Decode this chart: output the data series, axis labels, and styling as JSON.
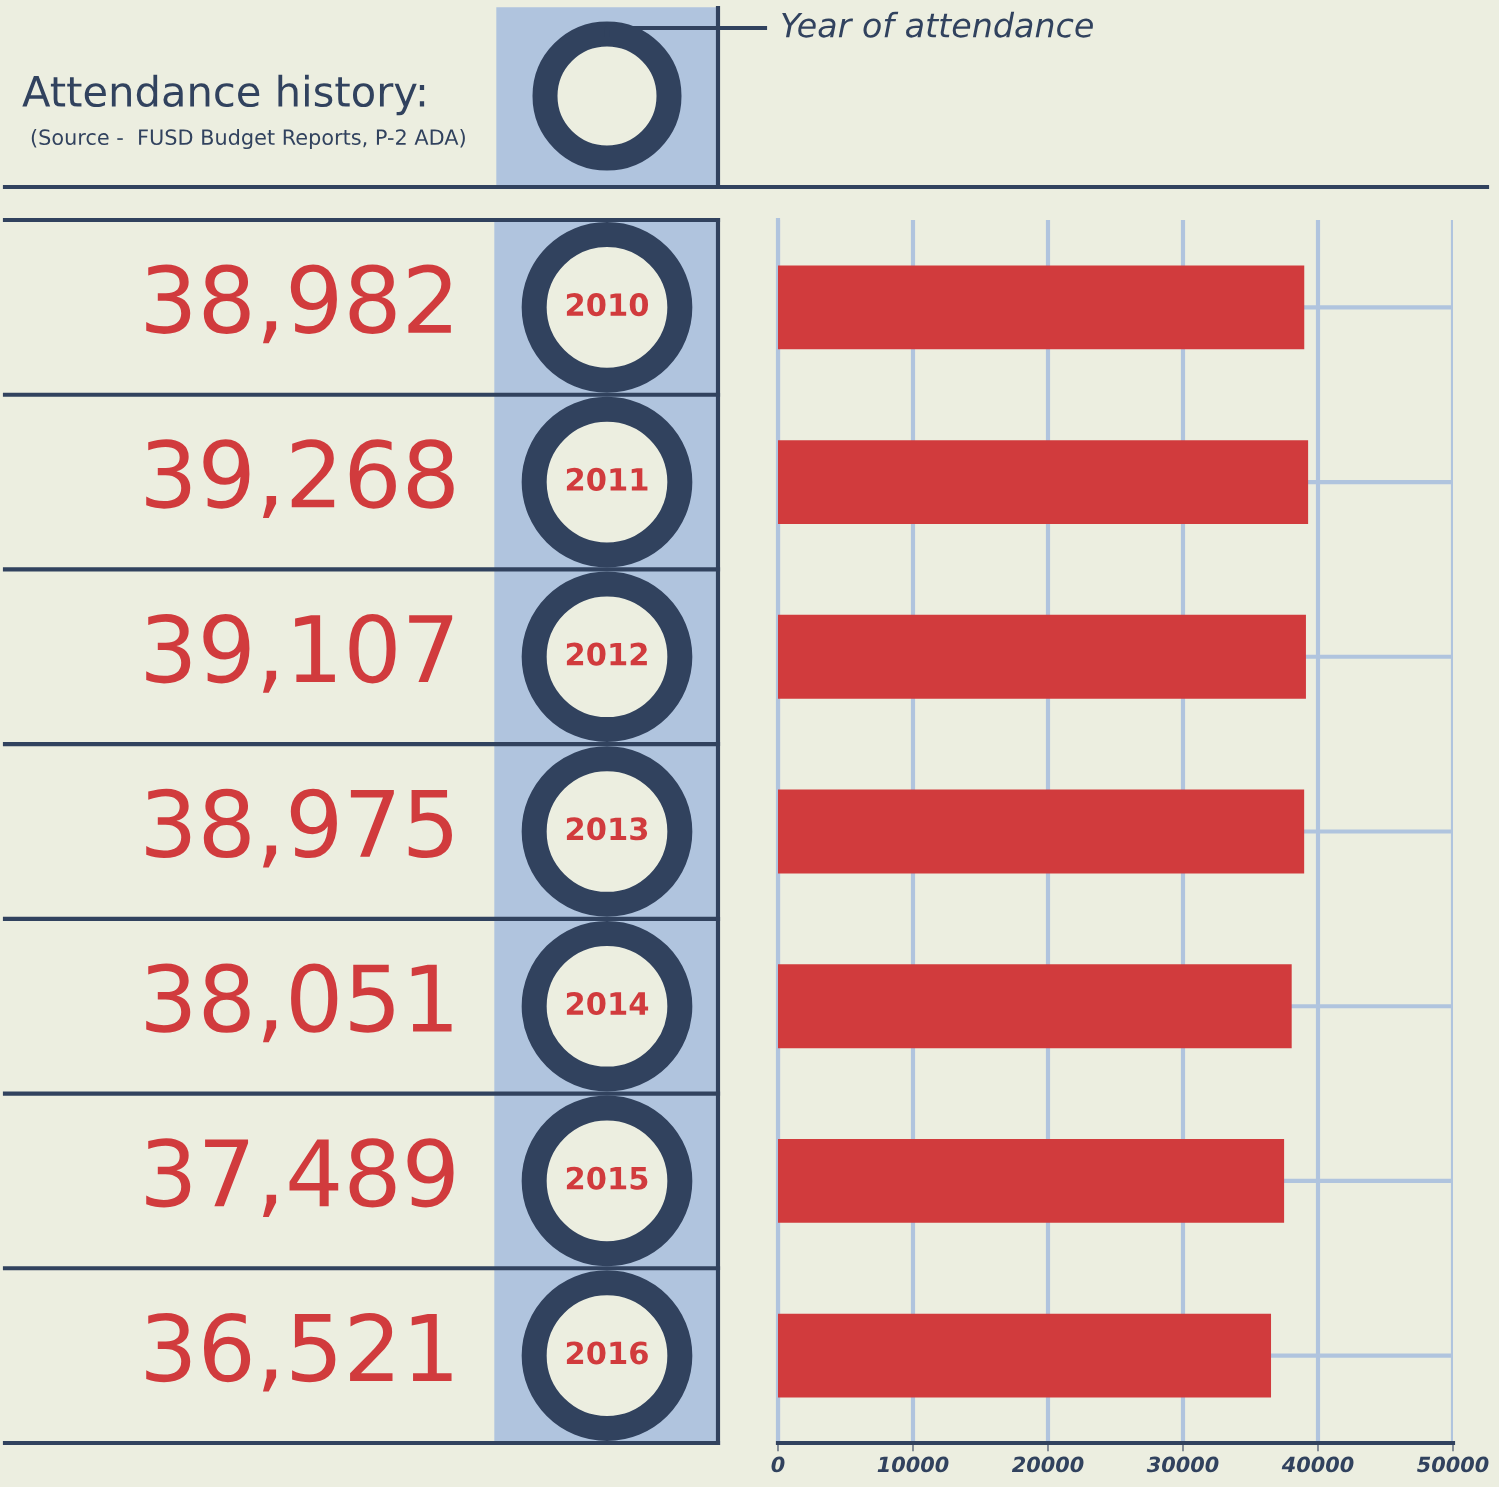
{
  "chart_data": {
    "type": "bar",
    "orientation": "horizontal",
    "title": "Attendance history:",
    "annotations": [
      "Year of attendance",
      "(Source -  FUSD Budget Reports, P-2 ADA)"
    ],
    "categories": [
      "2010",
      "2011",
      "2012",
      "2013",
      "2014",
      "2015",
      "2016"
    ],
    "values": [
      38982,
      39268,
      39107,
      38975,
      38051,
      37489,
      36521
    ],
    "value_labels": [
      "38,982",
      "39,268",
      "39,107",
      "38,975",
      "38,051",
      "37,489",
      "36,521"
    ],
    "color": "#d13b3d",
    "xlim": [
      0,
      50000
    ],
    "xticks": [
      0,
      10000,
      20000,
      30000,
      40000,
      50000
    ],
    "grid": true,
    "legend": false
  }
}
